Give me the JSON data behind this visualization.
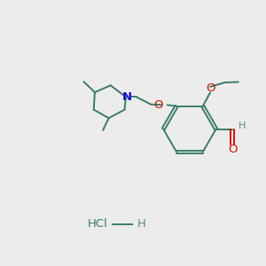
{
  "bg_color": "#ececec",
  "bond_color": "#3d7a6a",
  "N_color": "#1010cc",
  "O_color": "#cc1100",
  "label_color": "#5a8a7a",
  "lw": 1.4,
  "font_size": 9,
  "figsize": [
    3.0,
    3.0
  ],
  "dpi": 100,
  "xlim": [
    0,
    10
  ],
  "ylim": [
    0,
    10
  ]
}
